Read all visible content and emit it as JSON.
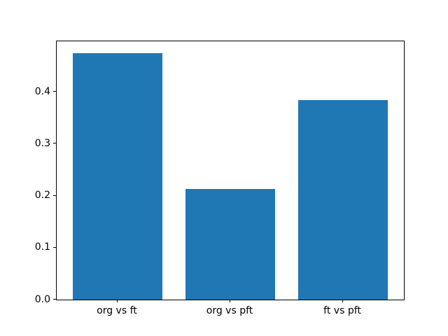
{
  "figure": {
    "background": "#ffffff",
    "spine_color": "#000000",
    "text_color": "#000000"
  },
  "chart_data": {
    "type": "bar",
    "title": "",
    "xlabel": "",
    "ylabel": "",
    "categories": [
      "org vs ft",
      "org vs pft",
      "ft vs pft"
    ],
    "values": [
      0.475,
      0.213,
      0.384
    ],
    "positions": [
      0,
      1,
      2
    ],
    "bar_width": 0.8,
    "bar_color": "#1f77b4",
    "xlim": [
      -0.54,
      2.54
    ],
    "ylim": [
      0,
      0.4975
    ],
    "yticks": [
      0.0,
      0.1,
      0.2,
      0.3,
      0.4
    ],
    "ytick_labels": [
      "0.0",
      "0.1",
      "0.2",
      "0.3",
      "0.4"
    ],
    "grid": false,
    "legend": null
  }
}
